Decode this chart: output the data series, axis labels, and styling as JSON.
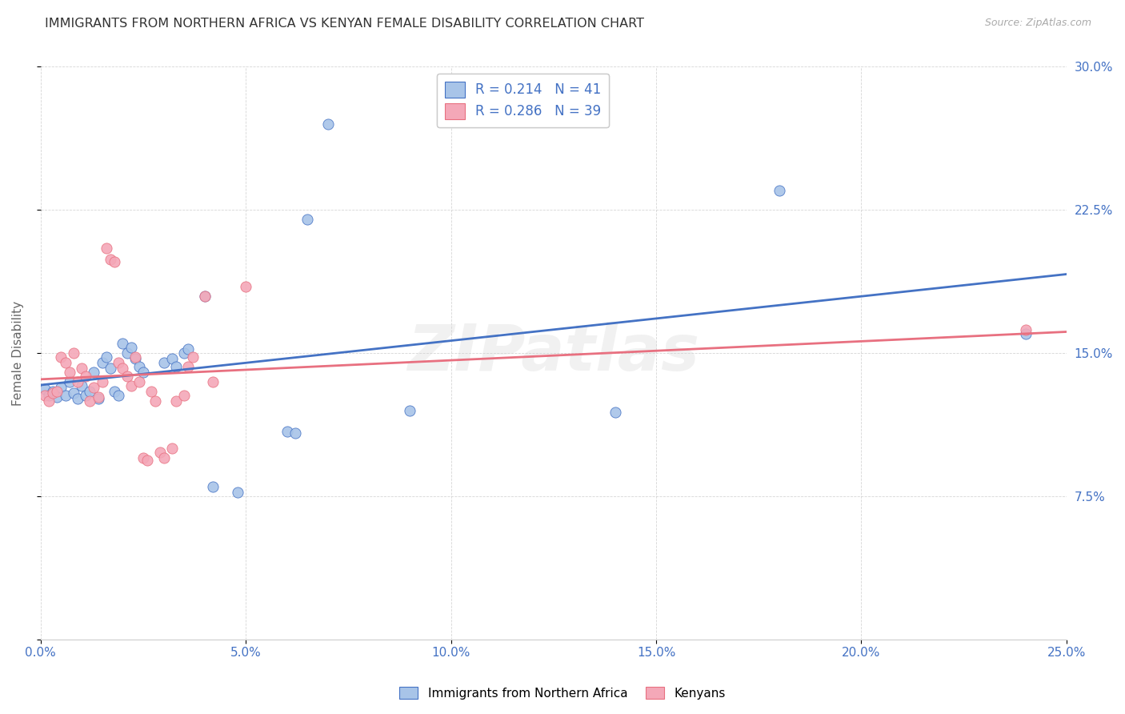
{
  "title": "IMMIGRANTS FROM NORTHERN AFRICA VS KENYAN FEMALE DISABILITY CORRELATION CHART",
  "source": "Source: ZipAtlas.com",
  "xlabel_ticks": [
    "0.0%",
    "5.0%",
    "10.0%",
    "15.0%",
    "20.0%",
    "25.0%"
  ],
  "xlabel_vals": [
    0.0,
    0.05,
    0.1,
    0.15,
    0.2,
    0.25
  ],
  "ylabel_ticks_right": [
    "30.0%",
    "22.5%",
    "15.0%",
    "7.5%"
  ],
  "ylabel_vals": [
    0.0,
    0.075,
    0.15,
    0.225,
    0.3
  ],
  "ylabel": "Female Disability",
  "legend_labels": [
    "Immigrants from Northern Africa",
    "Kenyans"
  ],
  "R_blue": 0.214,
  "N_blue": 41,
  "R_pink": 0.286,
  "N_pink": 39,
  "watermark": "ZIPatlas",
  "blue_color": "#a8c4e8",
  "pink_color": "#f4a8b8",
  "blue_line_color": "#4472c4",
  "pink_line_color": "#e87080",
  "blue_scatter": [
    [
      0.001,
      0.131
    ],
    [
      0.002,
      0.128
    ],
    [
      0.003,
      0.13
    ],
    [
      0.004,
      0.127
    ],
    [
      0.005,
      0.132
    ],
    [
      0.006,
      0.128
    ],
    [
      0.007,
      0.135
    ],
    [
      0.008,
      0.129
    ],
    [
      0.009,
      0.126
    ],
    [
      0.01,
      0.133
    ],
    [
      0.011,
      0.128
    ],
    [
      0.012,
      0.13
    ],
    [
      0.013,
      0.14
    ],
    [
      0.014,
      0.126
    ],
    [
      0.015,
      0.145
    ],
    [
      0.016,
      0.148
    ],
    [
      0.017,
      0.142
    ],
    [
      0.018,
      0.13
    ],
    [
      0.019,
      0.128
    ],
    [
      0.02,
      0.155
    ],
    [
      0.021,
      0.15
    ],
    [
      0.022,
      0.153
    ],
    [
      0.023,
      0.147
    ],
    [
      0.024,
      0.143
    ],
    [
      0.025,
      0.14
    ],
    [
      0.03,
      0.145
    ],
    [
      0.032,
      0.147
    ],
    [
      0.033,
      0.143
    ],
    [
      0.035,
      0.15
    ],
    [
      0.036,
      0.152
    ],
    [
      0.04,
      0.18
    ],
    [
      0.042,
      0.08
    ],
    [
      0.048,
      0.077
    ],
    [
      0.06,
      0.109
    ],
    [
      0.062,
      0.108
    ],
    [
      0.065,
      0.22
    ],
    [
      0.07,
      0.27
    ],
    [
      0.09,
      0.12
    ],
    [
      0.14,
      0.119
    ],
    [
      0.18,
      0.235
    ],
    [
      0.24,
      0.16
    ]
  ],
  "pink_scatter": [
    [
      0.001,
      0.128
    ],
    [
      0.002,
      0.125
    ],
    [
      0.003,
      0.129
    ],
    [
      0.004,
      0.13
    ],
    [
      0.005,
      0.148
    ],
    [
      0.006,
      0.145
    ],
    [
      0.007,
      0.14
    ],
    [
      0.008,
      0.15
    ],
    [
      0.009,
      0.135
    ],
    [
      0.01,
      0.142
    ],
    [
      0.011,
      0.138
    ],
    [
      0.012,
      0.125
    ],
    [
      0.013,
      0.132
    ],
    [
      0.014,
      0.127
    ],
    [
      0.015,
      0.135
    ],
    [
      0.016,
      0.205
    ],
    [
      0.017,
      0.199
    ],
    [
      0.018,
      0.198
    ],
    [
      0.019,
      0.145
    ],
    [
      0.02,
      0.142
    ],
    [
      0.021,
      0.138
    ],
    [
      0.022,
      0.133
    ],
    [
      0.023,
      0.148
    ],
    [
      0.024,
      0.135
    ],
    [
      0.025,
      0.095
    ],
    [
      0.026,
      0.094
    ],
    [
      0.027,
      0.13
    ],
    [
      0.028,
      0.125
    ],
    [
      0.029,
      0.098
    ],
    [
      0.03,
      0.095
    ],
    [
      0.032,
      0.1
    ],
    [
      0.033,
      0.125
    ],
    [
      0.035,
      0.128
    ],
    [
      0.036,
      0.143
    ],
    [
      0.037,
      0.148
    ],
    [
      0.04,
      0.18
    ],
    [
      0.042,
      0.135
    ],
    [
      0.05,
      0.185
    ],
    [
      0.24,
      0.162
    ]
  ],
  "xlim": [
    0.0,
    0.25
  ],
  "ylim": [
    0.0,
    0.3
  ],
  "title_fontsize": 11.5,
  "source_fontsize": 9,
  "tick_fontsize": 11
}
